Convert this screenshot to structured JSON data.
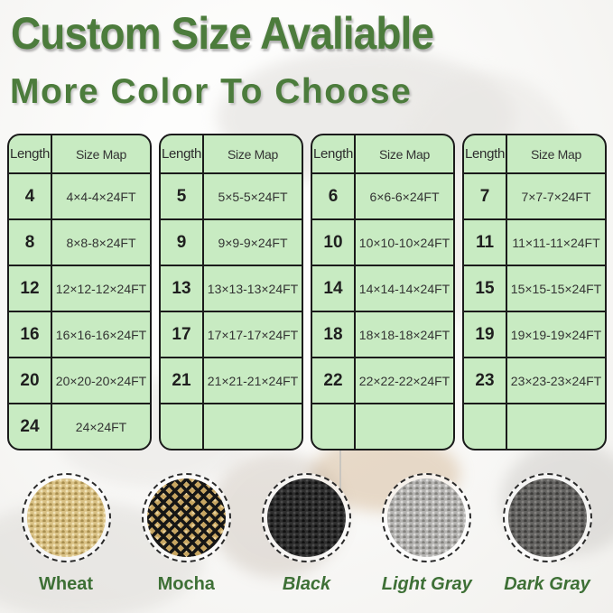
{
  "page": {
    "title": "Custom Size Avaliable",
    "subtitle": "More Color To Choose"
  },
  "colors": {
    "heading_green": "#4c7c3c",
    "label_green": "#3e7036",
    "table_bg": "#c8ebc2",
    "table_border": "#1b1b1b"
  },
  "tables": [
    {
      "headers": [
        "Length",
        "Size Map"
      ],
      "rows": [
        [
          "4",
          "4×4-4×24FT"
        ],
        [
          "8",
          "8×8-8×24FT"
        ],
        [
          "12",
          "12×12-12×24FT"
        ],
        [
          "16",
          "16×16-16×24FT"
        ],
        [
          "20",
          "20×20-20×24FT"
        ],
        [
          "24",
          "24×24FT"
        ]
      ]
    },
    {
      "headers": [
        "Length",
        "Size Map"
      ],
      "rows": [
        [
          "5",
          "5×5-5×24FT"
        ],
        [
          "9",
          "9×9-9×24FT"
        ],
        [
          "13",
          "13×13-13×24FT"
        ],
        [
          "17",
          "17×17-17×24FT"
        ],
        [
          "21",
          "21×21-21×24FT"
        ],
        [
          "",
          ""
        ]
      ]
    },
    {
      "headers": [
        "Length",
        "Size Map"
      ],
      "rows": [
        [
          "6",
          "6×6-6×24FT"
        ],
        [
          "10",
          "10×10-10×24FT"
        ],
        [
          "14",
          "14×14-14×24FT"
        ],
        [
          "18",
          "18×18-18×24FT"
        ],
        [
          "22",
          "22×22-22×24FT"
        ],
        [
          "",
          ""
        ]
      ]
    },
    {
      "headers": [
        "Length",
        "Size Map"
      ],
      "rows": [
        [
          "7",
          "7×7-7×24FT"
        ],
        [
          "11",
          "11×11-11×24FT"
        ],
        [
          "15",
          "15×15-15×24FT"
        ],
        [
          "19",
          "19×19-19×24FT"
        ],
        [
          "23",
          "23×23-23×24FT"
        ],
        [
          "",
          ""
        ]
      ]
    }
  ],
  "swatches": [
    {
      "name": "Wheat",
      "italic": false,
      "texture": "knit",
      "colors": {
        "base": "#d9c185",
        "hi": "#f1e4ba",
        "lo": "#a88e4f"
      }
    },
    {
      "name": "Mocha",
      "italic": false,
      "texture": "weave",
      "colors": {
        "base": "#c7a561",
        "hi": "#e7d09b",
        "lo": "#161616"
      }
    },
    {
      "name": "Black",
      "italic": true,
      "texture": "knit",
      "colors": {
        "base": "#2e2e2e",
        "hi": "#4c4c4c",
        "lo": "#101010"
      }
    },
    {
      "name": "Light Gray",
      "italic": true,
      "texture": "knit",
      "colors": {
        "base": "#b4b3b1",
        "hi": "#dddcda",
        "lo": "#83827e"
      }
    },
    {
      "name": "Dark Gray",
      "italic": true,
      "texture": "knit",
      "colors": {
        "base": "#646361",
        "hi": "#848380",
        "lo": "#3d3c3a"
      }
    }
  ]
}
